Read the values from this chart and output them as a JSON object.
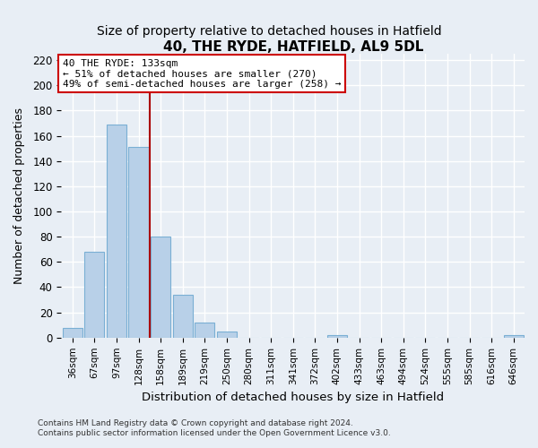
{
  "title": "40, THE RYDE, HATFIELD, AL9 5DL",
  "subtitle": "Size of property relative to detached houses in Hatfield",
  "xlabel": "Distribution of detached houses by size in Hatfield",
  "ylabel": "Number of detached properties",
  "categories": [
    "36sqm",
    "67sqm",
    "97sqm",
    "128sqm",
    "158sqm",
    "189sqm",
    "219sqm",
    "250sqm",
    "280sqm",
    "311sqm",
    "341sqm",
    "372sqm",
    "402sqm",
    "433sqm",
    "463sqm",
    "494sqm",
    "524sqm",
    "555sqm",
    "585sqm",
    "616sqm",
    "646sqm"
  ],
  "values": [
    8,
    68,
    169,
    151,
    80,
    34,
    12,
    5,
    0,
    0,
    0,
    0,
    2,
    0,
    0,
    0,
    0,
    0,
    0,
    0,
    2
  ],
  "bar_color": "#b8d0e8",
  "bar_edge_color": "#7aafd4",
  "reference_line_color": "#aa0000",
  "annotation_text": "40 THE RYDE: 133sqm\n← 51% of detached houses are smaller (270)\n49% of semi-detached houses are larger (258) →",
  "annotation_box_color": "#ffffff",
  "annotation_box_edge_color": "#cc0000",
  "ylim": [
    0,
    225
  ],
  "yticks": [
    0,
    20,
    40,
    60,
    80,
    100,
    120,
    140,
    160,
    180,
    200,
    220
  ],
  "footer_line1": "Contains HM Land Registry data © Crown copyright and database right 2024.",
  "footer_line2": "Contains public sector information licensed under the Open Government Licence v3.0.",
  "background_color": "#e8eef5",
  "grid_color": "#ffffff",
  "title_fontsize": 11,
  "subtitle_fontsize": 10
}
